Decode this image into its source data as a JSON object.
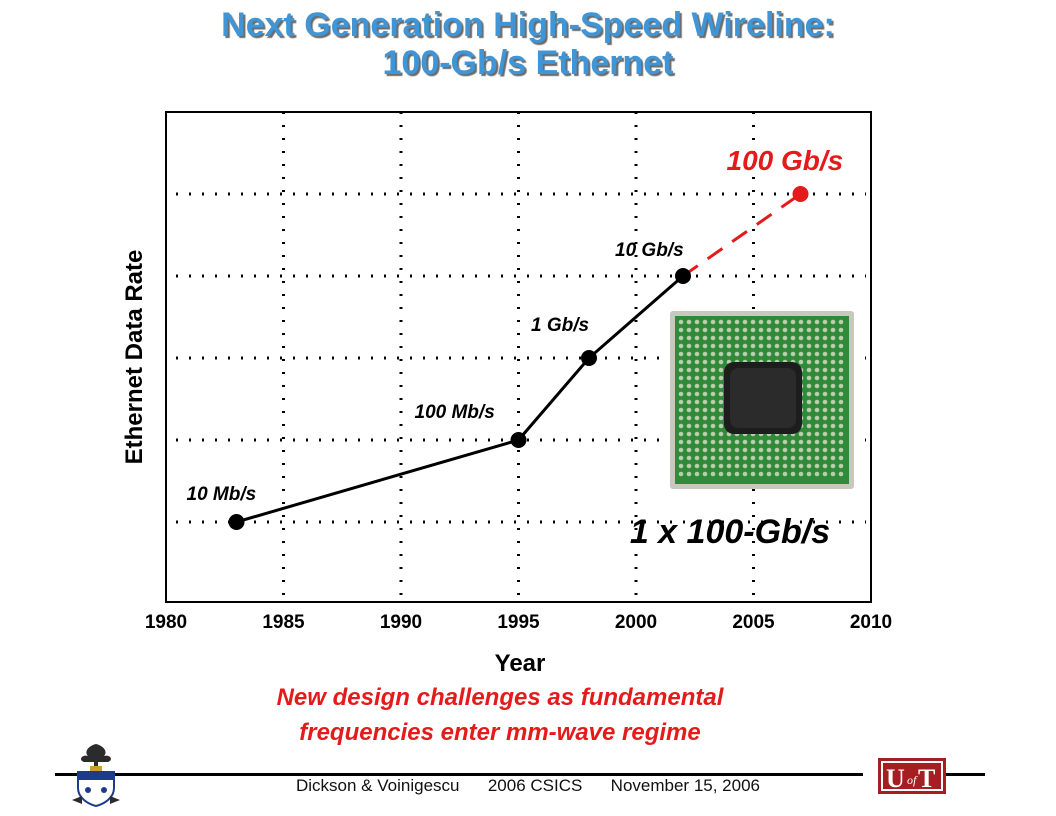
{
  "slide": {
    "title_line1": "Next Generation High-Speed Wireline:",
    "title_line2": "100-Gb/s Ethernet",
    "caption_line1": "New design challenges as fundamental",
    "caption_line2": "frequencies enter mm-wave regime",
    "footer": {
      "authors": "Dickson & Voinigescu",
      "conference": "2006 CSICS",
      "date": "November 15, 2006"
    },
    "logo_text": "UofT",
    "chip_label": "1 x 100-Gb/s"
  },
  "colors": {
    "title": "#3f95d6",
    "accent_red": "#e31b1b",
    "chip_green": "#2f8a3a"
  },
  "chart_data": {
    "type": "line",
    "xlabel": "Year",
    "ylabel": "Ethernet Data Rate",
    "xlim": [
      1980,
      2010
    ],
    "x_ticks": [
      "1980",
      "1985",
      "1990",
      "1995",
      "2000",
      "2005",
      "2010"
    ],
    "y_scale": "log",
    "grid": true,
    "series": [
      {
        "style": "solid",
        "color": "#000000",
        "points": [
          {
            "x": 1983,
            "y": "10 Mb/s",
            "label": "10 Mb/s"
          },
          {
            "x": 1995,
            "y": "100 Mb/s",
            "label": "100 Mb/s"
          },
          {
            "x": 1998,
            "y": "1 Gb/s",
            "label": "1 Gb/s"
          },
          {
            "x": 2002,
            "y": "10 Gb/s",
            "label": "10 Gb/s"
          }
        ]
      },
      {
        "style": "dashed",
        "color": "#e31b1b",
        "points": [
          {
            "x": 2002,
            "y": "10 Gb/s"
          },
          {
            "x": 2007,
            "y": "100 Gb/s",
            "label": "100 Gb/s"
          }
        ]
      }
    ],
    "y_levels": [
      "10 Mb/s",
      "100 Mb/s",
      "1 Gb/s",
      "10 Gb/s",
      "100 Gb/s"
    ]
  }
}
